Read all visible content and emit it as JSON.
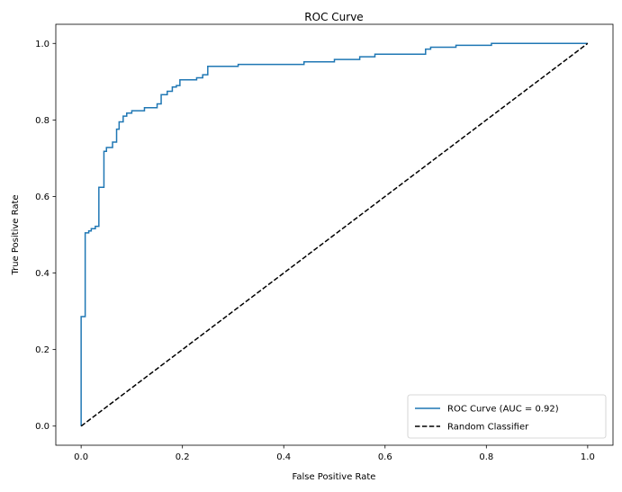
{
  "chart_data": {
    "type": "line",
    "title": "ROC Curve",
    "xlabel": "False Positive Rate",
    "ylabel": "True Positive Rate",
    "xlim": [
      -0.05,
      1.05
    ],
    "ylim": [
      -0.05,
      1.05
    ],
    "xticks": [
      0.0,
      0.2,
      0.4,
      0.6,
      0.8,
      1.0
    ],
    "xtick_labels": [
      "0.0",
      "0.2",
      "0.4",
      "0.6",
      "0.8",
      "1.0"
    ],
    "yticks": [
      0.0,
      0.2,
      0.4,
      0.6,
      0.8,
      1.0
    ],
    "ytick_labels": [
      "0.0",
      "0.2",
      "0.4",
      "0.6",
      "0.8",
      "1.0"
    ],
    "grid": false,
    "legend_position": "lower-right",
    "series": [
      {
        "name": "ROC Curve (AUC = 0.92)",
        "color": "#1f77b4",
        "style": "solid",
        "step": true,
        "x": [
          0.0,
          0.0,
          0.008,
          0.008,
          0.015,
          0.015,
          0.02,
          0.02,
          0.028,
          0.028,
          0.035,
          0.035,
          0.045,
          0.045,
          0.05,
          0.05,
          0.062,
          0.062,
          0.07,
          0.07,
          0.075,
          0.075,
          0.083,
          0.083,
          0.09,
          0.09,
          0.098,
          0.098,
          0.1,
          0.1,
          0.125,
          0.125,
          0.15,
          0.15,
          0.158,
          0.158,
          0.163,
          0.163,
          0.17,
          0.17,
          0.18,
          0.18,
          0.188,
          0.188,
          0.195,
          0.195,
          0.2,
          0.2,
          0.228,
          0.228,
          0.24,
          0.24,
          0.25,
          0.25,
          0.31,
          0.31,
          0.44,
          0.44,
          0.5,
          0.5,
          0.55,
          0.55,
          0.58,
          0.58,
          0.68,
          0.68,
          0.69,
          0.69,
          0.74,
          0.74,
          0.81,
          0.81,
          1.0
        ],
        "y": [
          0.0,
          0.286,
          0.286,
          0.505,
          0.505,
          0.51,
          0.51,
          0.516,
          0.516,
          0.522,
          0.522,
          0.624,
          0.624,
          0.718,
          0.718,
          0.728,
          0.728,
          0.742,
          0.742,
          0.776,
          0.776,
          0.795,
          0.795,
          0.81,
          0.81,
          0.818,
          0.818,
          0.818,
          0.818,
          0.824,
          0.824,
          0.832,
          0.832,
          0.842,
          0.842,
          0.866,
          0.866,
          0.866,
          0.866,
          0.875,
          0.875,
          0.886,
          0.886,
          0.89,
          0.89,
          0.905,
          0.905,
          0.905,
          0.905,
          0.91,
          0.91,
          0.918,
          0.918,
          0.94,
          0.94,
          0.945,
          0.945,
          0.952,
          0.952,
          0.958,
          0.958,
          0.965,
          0.965,
          0.972,
          0.972,
          0.985,
          0.985,
          0.99,
          0.99,
          0.995,
          0.995,
          1.0,
          1.0
        ]
      },
      {
        "name": "Random Classifier",
        "color": "#000000",
        "style": "dashed",
        "step": false,
        "x": [
          0.0,
          1.0
        ],
        "y": [
          0.0,
          1.0
        ]
      }
    ]
  }
}
